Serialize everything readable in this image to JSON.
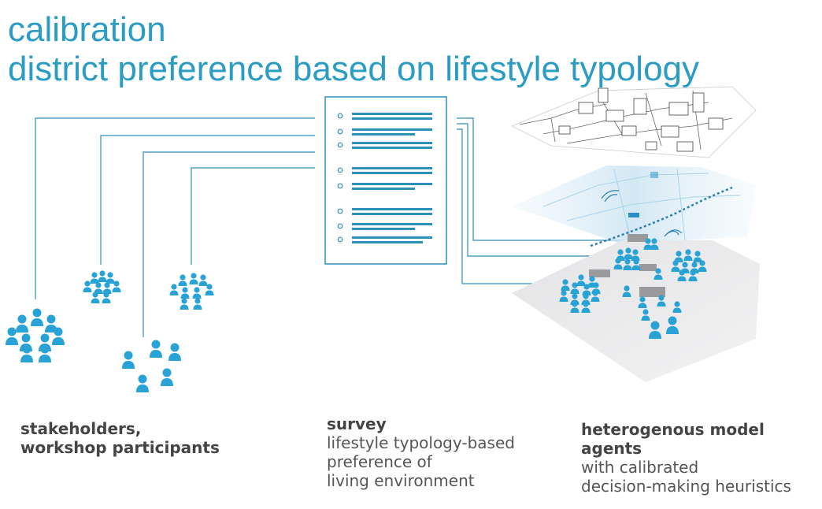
{
  "title": {
    "line1": "calibration",
    "line2": "district preference based on lifestyle typology"
  },
  "labels": {
    "stakeholders": {
      "line1": "stakeholders,",
      "line2": "workshop participants"
    },
    "survey": {
      "heading": "survey",
      "line1": "lifestyle typology-based",
      "line2": "preference of",
      "line3": "living environment"
    },
    "agents": {
      "heading": "heterogenous model agents",
      "line1": "with calibrated",
      "line2": "decision-making heuristics"
    }
  },
  "colors": {
    "accent": "#2b9cc4",
    "person": "#29a3d6",
    "line": "#2e8fb8",
    "text": "#555555"
  },
  "icons": [
    "people-group-icon",
    "survey-document-icon",
    "city-map-layer-icon",
    "agent-layer-icon"
  ]
}
